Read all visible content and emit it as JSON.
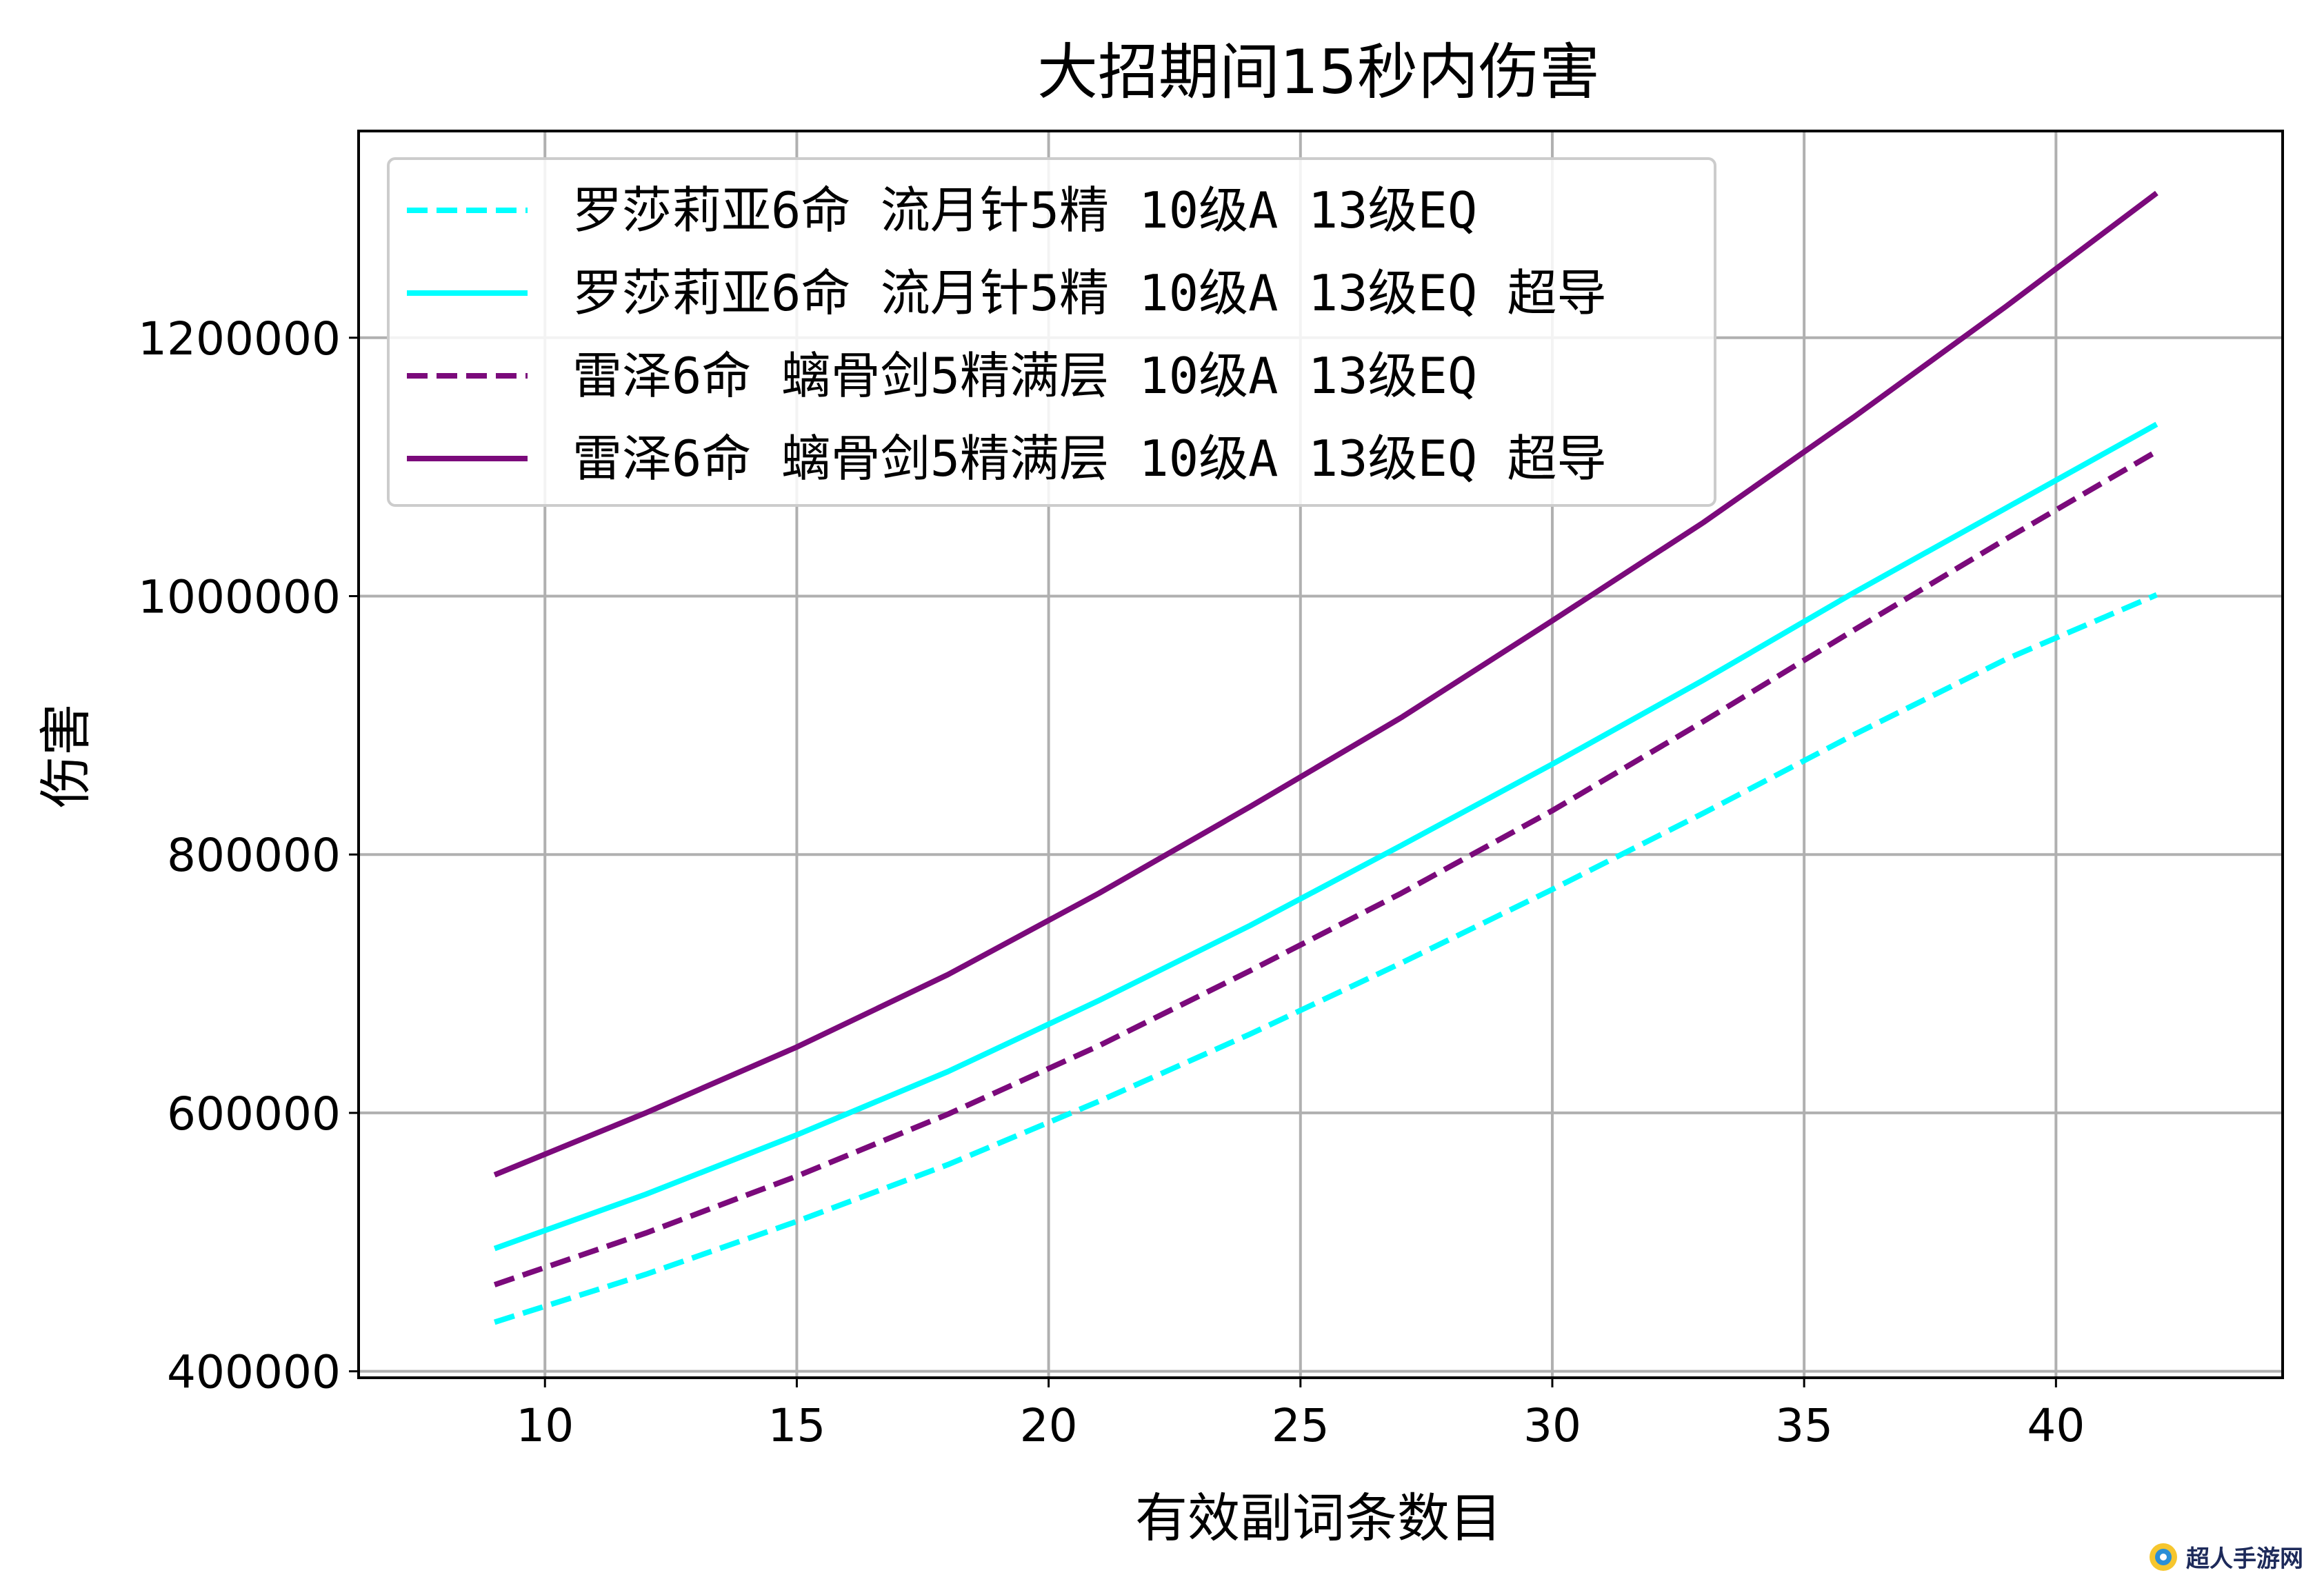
{
  "chart_data": {
    "type": "line",
    "title": "大招期间15秒内伤害",
    "xlabel": "有效副词条数目",
    "ylabel": "伤害",
    "xlim": [
      6.3,
      44.5
    ],
    "ylim": [
      395000,
      1360000
    ],
    "xticks": [
      10,
      15,
      20,
      25,
      30,
      35,
      40
    ],
    "yticks": [
      400000,
      600000,
      800000,
      1000000,
      1200000
    ],
    "grid": true,
    "legend_position": "top-left",
    "x": [
      9,
      12,
      15,
      18,
      21,
      24,
      27,
      30,
      33,
      36,
      39,
      42
    ],
    "series": [
      {
        "name": "罗莎莉亚6命 流月针5精 10级A 13级EQ",
        "color": "#00ffff",
        "dash": true,
        "values": [
          438000,
          475000,
          516000,
          560000,
          609000,
          661000,
          716000,
          773000,
          832000,
          893000,
          951000,
          1001000
        ]
      },
      {
        "name": "罗莎莉亚6命 流月针5精 10级A 13级EQ 超导",
        "color": "#00ffff",
        "dash": false,
        "values": [
          495000,
          537000,
          583000,
          632000,
          687000,
          745000,
          807000,
          870000,
          935000,
          1003000,
          1068000,
          1133000
        ]
      },
      {
        "name": "雷泽6命 螭骨剑5精满层 10级A 13级EQ",
        "color": "#7b0a7b",
        "dash": true,
        "values": [
          467000,
          507000,
          551000,
          599000,
          652000,
          710000,
          770000,
          834000,
          903000,
          974000,
          1044000,
          1112000
        ]
      },
      {
        "name": "雷泽6命 螭骨剑5精满层 10级A 13级EQ 超导",
        "color": "#7b0a7b",
        "dash": false,
        "values": [
          552000,
          600000,
          651000,
          707000,
          770000,
          837000,
          906000,
          981000,
          1057000,
          1139000,
          1224000,
          1312000
        ]
      }
    ]
  },
  "watermark": {
    "text": "超人手游网"
  }
}
